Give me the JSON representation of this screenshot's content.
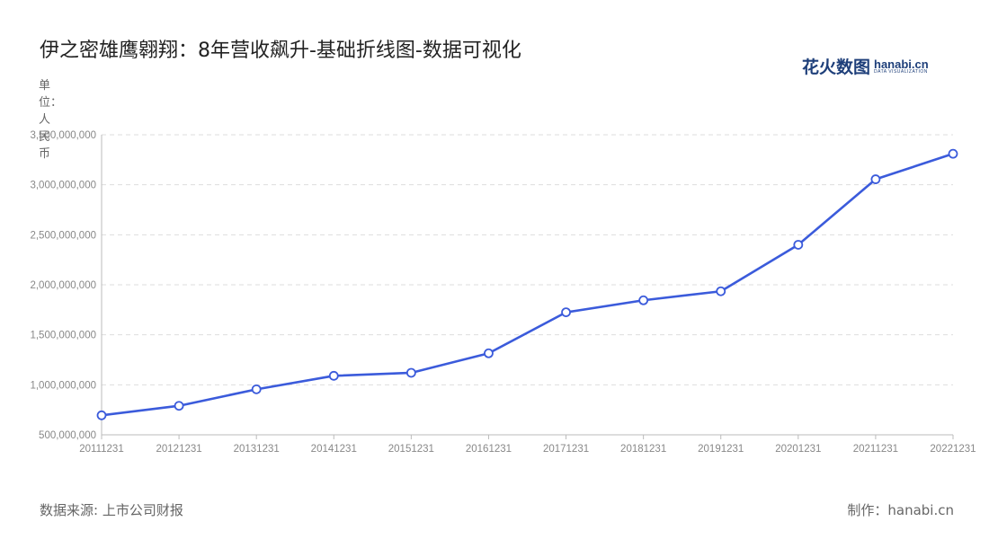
{
  "title": "伊之密雄鹰翱翔：8年营收飙升-基础折线图-数据可视化",
  "logo": {
    "cn": "花火数图",
    "en": "hanabi.cn",
    "sub": "DATA VISUALIZATION"
  },
  "unit_label": "单位：人民币",
  "footer": {
    "source": "数据来源: 上市公司财报",
    "credit": "制作：hanabi.cn"
  },
  "colors": {
    "line": "#3b5bdb",
    "grid": "#dddddd",
    "axis": "#bbbbbb",
    "tick_text": "#888888"
  },
  "chart_data": {
    "type": "line",
    "title": "伊之密雄鹰翱翔：8年营收飙升-基础折线图-数据可视化",
    "xlabel": "",
    "ylabel": "单位：人民币",
    "categories": [
      "20111231",
      "20121231",
      "20131231",
      "20141231",
      "20151231",
      "20161231",
      "20171231",
      "20181231",
      "20191231",
      "20201231",
      "20211231",
      "20221231"
    ],
    "series": [
      {
        "values": [
          695000000,
          790000000,
          955000000,
          1090000000,
          1120000000,
          1315000000,
          1725000000,
          1845000000,
          1935000000,
          2400000000,
          3055000000,
          3310000000
        ]
      }
    ],
    "ylim": [
      500000000,
      3500000000
    ],
    "yticks": [
      500000000,
      1000000000,
      1500000000,
      2000000000,
      2500000000,
      3000000000,
      3500000000
    ],
    "ytick_labels": [
      "500,000,000",
      "1,000,000,000",
      "1,500,000,000",
      "2,000,000,000",
      "2,500,000,000",
      "3,000,000,000",
      "3,500,000,000"
    ],
    "grid": true,
    "legend": "none"
  }
}
